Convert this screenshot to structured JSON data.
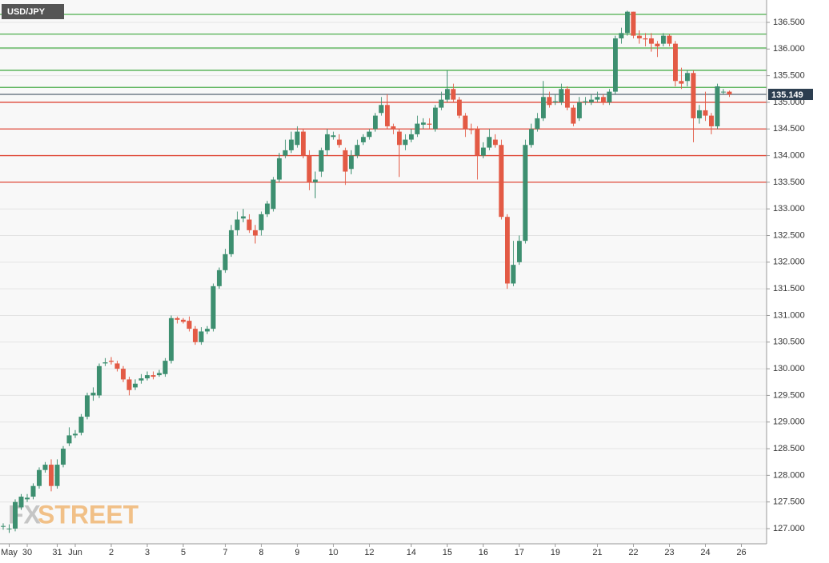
{
  "chart_data": {
    "type": "candlestick",
    "title": "USD/JPY",
    "categories": [
      null,
      "May",
      null,
      null,
      "30",
      null,
      null,
      null,
      null,
      "31",
      null,
      null,
      "Jun",
      null,
      null,
      null,
      null,
      null,
      "2",
      null,
      null,
      null,
      null,
      null,
      "3",
      null,
      null,
      null,
      null,
      null,
      "5",
      null,
      null,
      null,
      null,
      null,
      null,
      "7",
      null,
      null,
      null,
      null,
      null,
      "8",
      null,
      null,
      null,
      null,
      null,
      "9",
      null,
      null,
      null,
      null,
      null,
      "10",
      null,
      null,
      null,
      null,
      null,
      "12",
      null,
      null,
      null,
      null,
      null,
      null,
      "14",
      null,
      null,
      null,
      null,
      null,
      "15",
      null,
      null,
      null,
      null,
      null,
      "16",
      null,
      null,
      null,
      null,
      null,
      "17",
      null,
      null,
      null,
      null,
      null,
      "19",
      null,
      null,
      null,
      null,
      null,
      null,
      "21",
      null,
      null,
      null,
      null,
      null,
      "22",
      null,
      null,
      null,
      null,
      null,
      "23",
      null,
      null,
      null,
      null,
      null,
      "24",
      null,
      null,
      null,
      null,
      null,
      "26"
    ],
    "open": [
      127.05,
      127.0,
      127.0,
      127.4,
      127.55,
      127.6,
      127.8,
      128.1,
      128.2,
      127.8,
      128.2,
      128.6,
      128.75,
      128.8,
      129.1,
      129.5,
      129.5,
      130.1,
      130.15,
      130.1,
      130.0,
      129.8,
      129.65,
      129.78,
      129.82,
      129.88,
      129.88,
      129.9,
      130.15,
      130.95,
      130.92,
      130.9,
      130.75,
      130.5,
      130.7,
      130.75,
      131.55,
      131.85,
      132.15,
      132.6,
      132.82,
      132.8,
      132.6,
      132.6,
      132.9,
      133.0,
      133.55,
      134.0,
      134.1,
      134.2,
      134.45,
      134.0,
      133.5,
      133.7,
      134.1,
      134.35,
      134.3,
      134.1,
      133.75,
      134.0,
      134.25,
      134.35,
      134.5,
      134.8,
      134.95,
      134.55,
      134.45,
      134.2,
      134.3,
      134.4,
      134.58,
      134.6,
      134.5,
      134.9,
      135.05,
      135.25,
      135.05,
      134.75,
      134.5,
      134.5,
      134.0,
      134.15,
      134.3,
      134.2,
      132.85,
      131.6,
      132.0,
      132.4,
      134.2,
      134.5,
      134.7,
      135.1,
      135.0,
      135.0,
      135.25,
      134.9,
      134.7,
      135.0,
      135.0,
      135.05,
      135.1,
      135.0,
      135.2,
      136.2,
      136.3,
      136.7,
      136.25,
      136.2,
      136.2,
      136.1,
      136.1,
      136.25,
      136.1,
      135.4,
      135.4,
      135.55,
      134.7,
      134.85,
      134.75,
      134.55,
      135.2,
      135.2,
      null,
      null
    ],
    "high": [
      127.1,
      127.08,
      127.55,
      127.65,
      127.65,
      127.85,
      128.15,
      128.25,
      128.3,
      128.3,
      128.55,
      128.9,
      128.85,
      129.15,
      129.55,
      129.65,
      130.1,
      130.2,
      130.22,
      130.15,
      130.05,
      129.85,
      129.8,
      129.9,
      129.95,
      129.95,
      129.98,
      130.2,
      131.0,
      130.98,
      130.95,
      130.98,
      130.8,
      130.78,
      130.8,
      131.6,
      131.9,
      132.25,
      132.7,
      132.95,
      133.0,
      132.9,
      132.7,
      132.95,
      133.15,
      133.6,
      134.05,
      134.3,
      134.45,
      134.55,
      134.5,
      134.1,
      133.7,
      134.15,
      134.5,
      134.45,
      134.4,
      134.15,
      134.1,
      134.3,
      134.4,
      134.5,
      134.8,
      135.1,
      135.15,
      134.6,
      134.5,
      134.4,
      134.5,
      134.75,
      134.7,
      134.7,
      134.95,
      135.2,
      135.6,
      135.35,
      135.1,
      134.8,
      134.6,
      134.55,
      134.25,
      134.5,
      134.4,
      134.3,
      132.9,
      132.4,
      132.5,
      134.3,
      134.6,
      134.8,
      135.4,
      135.2,
      135.15,
      135.35,
      135.3,
      134.95,
      135.1,
      135.1,
      135.15,
      135.2,
      135.15,
      135.25,
      136.25,
      136.4,
      136.72,
      136.7,
      136.35,
      136.3,
      136.3,
      136.15,
      136.3,
      136.28,
      136.15,
      135.65,
      135.6,
      135.6,
      134.95,
      135.2,
      134.8,
      135.35,
      135.25,
      135.22,
      null,
      null
    ],
    "low": [
      126.98,
      126.92,
      126.95,
      127.35,
      127.5,
      127.55,
      127.75,
      128.05,
      127.7,
      127.75,
      128.15,
      128.55,
      128.7,
      128.75,
      129.05,
      129.4,
      129.45,
      130.05,
      130.08,
      129.95,
      129.75,
      129.5,
      129.6,
      129.72,
      129.78,
      129.8,
      129.85,
      129.85,
      130.1,
      130.85,
      130.85,
      130.7,
      130.45,
      130.45,
      130.65,
      130.7,
      131.5,
      131.8,
      132.1,
      132.5,
      132.75,
      132.55,
      132.35,
      132.5,
      132.85,
      132.95,
      133.5,
      133.95,
      134.05,
      134.15,
      133.95,
      133.35,
      133.2,
      133.6,
      134.0,
      134.3,
      134.15,
      133.45,
      133.65,
      133.95,
      134.2,
      134.3,
      134.45,
      134.75,
      134.5,
      134.4,
      133.6,
      134.1,
      134.25,
      134.35,
      134.5,
      134.5,
      134.45,
      134.85,
      135.0,
      135.0,
      134.7,
      134.35,
      134.4,
      133.55,
      133.95,
      134.1,
      134.15,
      132.8,
      131.5,
      131.55,
      131.95,
      132.35,
      134.15,
      134.45,
      134.65,
      134.9,
      134.95,
      134.95,
      134.85,
      134.55,
      134.65,
      134.95,
      134.95,
      135.0,
      134.95,
      134.95,
      135.15,
      136.1,
      136.25,
      136.2,
      136.1,
      136.05,
      135.95,
      135.85,
      136.05,
      136.05,
      135.3,
      135.25,
      135.3,
      134.25,
      134.6,
      134.65,
      134.4,
      134.5,
      135.15,
      135.1,
      null,
      null
    ],
    "close": [
      127.05,
      127.0,
      127.5,
      127.6,
      127.58,
      127.8,
      128.1,
      128.2,
      127.8,
      128.2,
      128.5,
      128.75,
      128.78,
      129.1,
      129.5,
      129.55,
      130.05,
      130.12,
      130.13,
      130.0,
      129.8,
      129.6,
      129.72,
      129.82,
      129.88,
      129.85,
      129.92,
      130.15,
      130.95,
      130.92,
      130.88,
      130.75,
      130.5,
      130.7,
      130.75,
      131.55,
      131.85,
      132.15,
      132.6,
      132.8,
      132.86,
      132.6,
      132.5,
      132.9,
      133.1,
      133.55,
      133.95,
      134.1,
      134.3,
      134.45,
      134.0,
      133.5,
      133.55,
      134.1,
      134.4,
      134.38,
      134.2,
      133.7,
      134.0,
      134.2,
      134.35,
      134.45,
      134.75,
      134.95,
      134.55,
      134.5,
      134.2,
      134.3,
      134.4,
      134.6,
      134.62,
      134.58,
      134.9,
      135.05,
      135.25,
      135.05,
      134.75,
      134.5,
      134.48,
      134.0,
      134.15,
      134.35,
      134.2,
      132.85,
      131.6,
      131.95,
      132.4,
      134.2,
      134.5,
      134.7,
      135.1,
      134.95,
      135.02,
      135.25,
      134.9,
      134.6,
      135.0,
      135.02,
      135.05,
      135.1,
      135.0,
      135.2,
      136.2,
      136.3,
      136.7,
      136.25,
      136.2,
      136.18,
      136.1,
      136.05,
      136.25,
      136.1,
      135.4,
      135.35,
      135.55,
      134.7,
      134.85,
      134.75,
      134.55,
      135.3,
      135.2,
      135.149,
      null,
      null
    ],
    "up_color": "#3d8f70",
    "down_color": "#e35a45",
    "ylim": [
      126.715,
      136.92
    ],
    "yticks": [
      {
        "value": 127,
        "label": "127.000"
      },
      {
        "value": 127.5,
        "label": "127.500"
      },
      {
        "value": 128,
        "label": "128.000"
      },
      {
        "value": 128.5,
        "label": "128.500"
      },
      {
        "value": 129,
        "label": "129.000"
      },
      {
        "value": 129.5,
        "label": "129.500"
      },
      {
        "value": 130,
        "label": "130.000"
      },
      {
        "value": 130.5,
        "label": "130.500"
      },
      {
        "value": 131,
        "label": "131.000"
      },
      {
        "value": 131.5,
        "label": "131.500"
      },
      {
        "value": 132,
        "label": "132.000"
      },
      {
        "value": 132.5,
        "label": "132.500"
      },
      {
        "value": 133,
        "label": "133.000"
      },
      {
        "value": 133.5,
        "label": "133.500"
      },
      {
        "value": 134,
        "label": "134.000"
      },
      {
        "value": 134.5,
        "label": "134.500"
      },
      {
        "value": 135,
        "label": "135.000"
      },
      {
        "value": 135.5,
        "label": "135.500"
      },
      {
        "value": 136,
        "label": "136.000"
      },
      {
        "value": 136.5,
        "label": "136.500"
      }
    ],
    "grid": true,
    "levels": [
      {
        "value": 136.65,
        "color": "#4cae4c"
      },
      {
        "value": 136.28,
        "color": "#4cae4c"
      },
      {
        "value": 136.02,
        "color": "#4cae4c"
      },
      {
        "value": 135.6,
        "color": "#4cae4c"
      },
      {
        "value": 135.28,
        "color": "#4cae4c"
      },
      {
        "value": 135.0,
        "color": "#e04a3a"
      },
      {
        "value": 134.5,
        "color": "#e04a3a"
      },
      {
        "value": 134.0,
        "color": "#e04a3a"
      },
      {
        "value": 133.5,
        "color": "#e04a3a"
      }
    ],
    "last_price": 135.149,
    "last_price_color": "#2c3e50",
    "watermark": {
      "prefix": "FX",
      "suffix": "STREET"
    }
  }
}
